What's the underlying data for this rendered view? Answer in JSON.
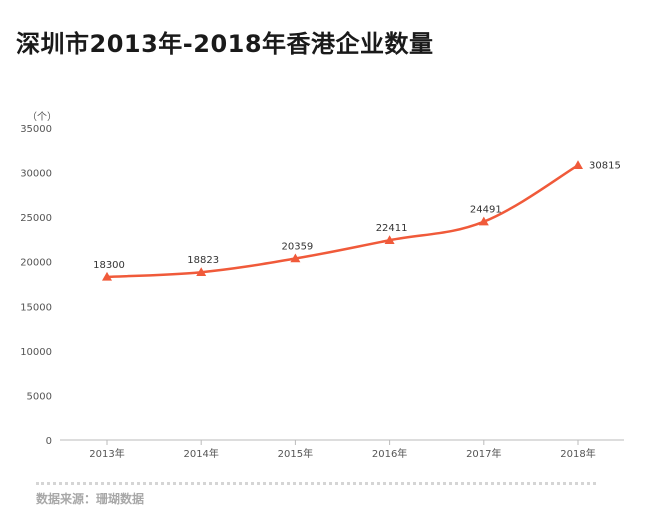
{
  "title": "深圳市2013年-2018年香港企业数量",
  "source": "数据来源：珊瑚数据",
  "colors": {
    "line": "#f05a3a",
    "axis": "#bbbbbb",
    "text": "#555555"
  },
  "chart_data": {
    "type": "line",
    "title": "深圳市2013年-2018年香港企业数量",
    "ylabel": "（个）",
    "xlabel": "",
    "categories": [
      "2013年",
      "2014年",
      "2015年",
      "2016年",
      "2017年",
      "2018年"
    ],
    "series": [
      {
        "values": [
          18300,
          18823,
          20359,
          22411,
          24491,
          30815
        ],
        "marker": "triangle"
      }
    ],
    "ylim": [
      0,
      35000
    ],
    "yticks": [
      0,
      5000,
      10000,
      15000,
      20000,
      25000,
      30000,
      35000
    ],
    "grid": false,
    "data_labels": true
  }
}
